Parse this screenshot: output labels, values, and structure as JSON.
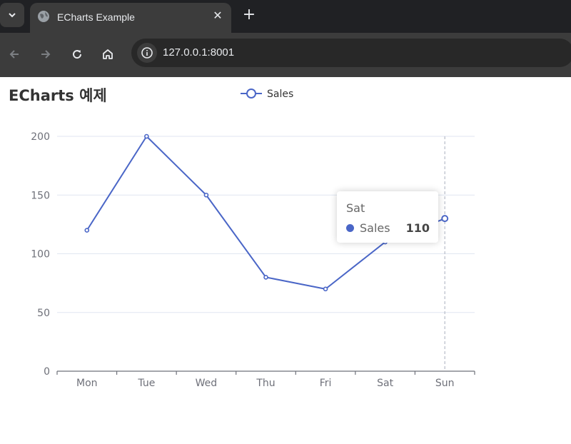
{
  "browser": {
    "tab_title": "ECharts Example",
    "url": "127.0.0.1:8001"
  },
  "page": {
    "title": "ECharts 예제"
  },
  "colors": {
    "series": "#4a66c7",
    "axis": "#6e7079",
    "grid": "#e0e6f1",
    "text": "#6e7079"
  },
  "tooltip": {
    "category": "Sat",
    "series": "Sales",
    "value": "110"
  },
  "chart_data": {
    "type": "line",
    "categories": [
      "Mon",
      "Tue",
      "Wed",
      "Thu",
      "Fri",
      "Sat",
      "Sun"
    ],
    "series": [
      {
        "name": "Sales",
        "values": [
          120,
          200,
          150,
          80,
          70,
          110,
          130
        ]
      }
    ],
    "ylim": [
      0,
      200
    ],
    "yticks": [
      "0",
      "50",
      "100",
      "150",
      "200"
    ],
    "legend": "top-center",
    "grid": true,
    "highlighted_category": "Sun"
  }
}
